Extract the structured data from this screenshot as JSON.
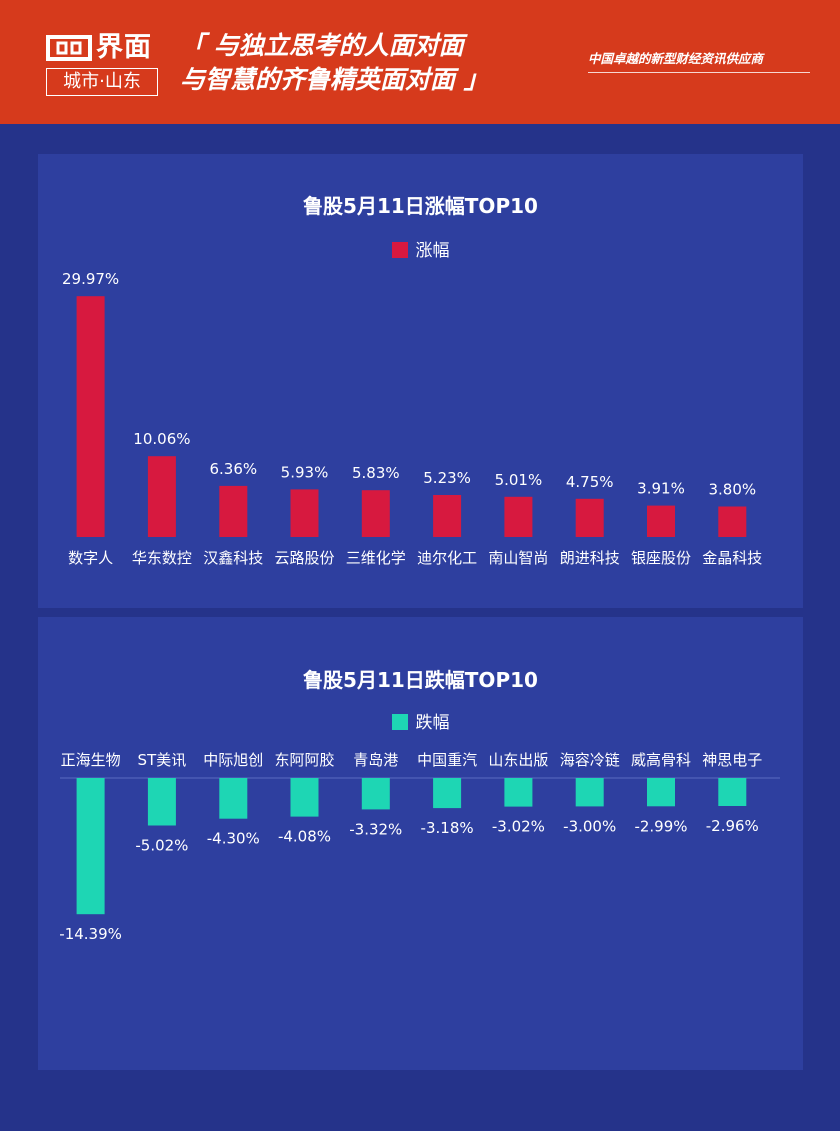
{
  "header": {
    "logo_name": "界面",
    "logo_sub": "城市·山东",
    "slogan_line1": "「 与独立思考的人面对面",
    "slogan_line2": "与智慧的齐鲁精英面对面 」",
    "tagline": "中国卓越的新型财经资讯供应商"
  },
  "colors": {
    "header_bg": "#d63a1c",
    "page_bg": "#25338a",
    "panel_bg": "#2e3f9f",
    "gain_bar": "#d7193f",
    "loss_bar": "#1ed6b4"
  },
  "chart_data": [
    {
      "type": "bar",
      "title": "鲁股5月11日涨幅TOP10",
      "legend": "涨幅",
      "categories": [
        "数字人",
        "华东数控",
        "汉鑫科技",
        "云路股份",
        "三维化学",
        "迪尔化工",
        "南山智尚",
        "朗进科技",
        "银座股份",
        "金晶科技"
      ],
      "values": [
        29.97,
        10.06,
        6.36,
        5.93,
        5.83,
        5.23,
        5.01,
        4.75,
        3.91,
        3.8
      ],
      "labels": [
        "29.97%",
        "10.06%",
        "6.36%",
        "5.93%",
        "5.83%",
        "5.23%",
        "5.01%",
        "4.75%",
        "3.91%",
        "3.80%"
      ],
      "ylim": [
        0,
        30
      ]
    },
    {
      "type": "bar",
      "title": "鲁股5月11日跌幅TOP10",
      "legend": "跌幅",
      "categories": [
        "正海生物",
        "ST美讯",
        "中际旭创",
        "东阿阿胶",
        "青岛港",
        "中国重汽",
        "山东出版",
        "海容冷链",
        "威高骨科",
        "神思电子"
      ],
      "values": [
        -14.39,
        -5.02,
        -4.3,
        -4.08,
        -3.32,
        -3.18,
        -3.02,
        -3.0,
        -2.99,
        -2.96
      ],
      "labels": [
        "-14.39%",
        "-5.02%",
        "-4.30%",
        "-4.08%",
        "-3.32%",
        "-3.18%",
        "-3.02%",
        "-3.00%",
        "-2.99%",
        "-2.96%"
      ],
      "ylim": [
        -15,
        0
      ]
    }
  ]
}
